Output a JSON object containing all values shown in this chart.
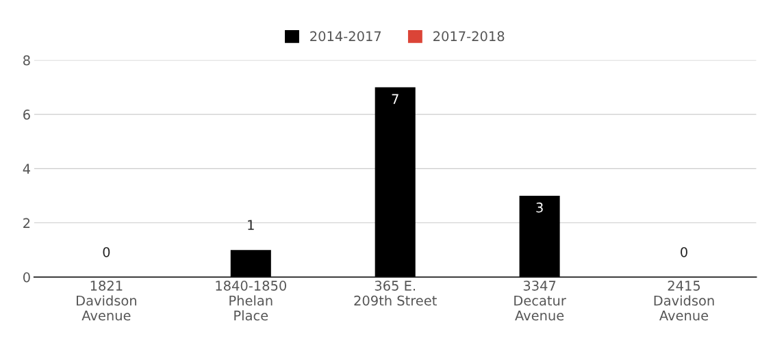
{
  "chart_data": {
    "type": "bar",
    "categories": [
      "1821\nDavidson\nAvenue",
      "1840-1850\nPhelan\nPlace",
      "365 E.\n209th Street",
      "3347\nDecatur\nAvenue",
      "2415\nDavidson\nAvenue"
    ],
    "series": [
      {
        "name": "2014-2017",
        "color": "#000000",
        "values": [
          0,
          1,
          7,
          3,
          0
        ]
      },
      {
        "name": "2017-2018",
        "color": "#db4437",
        "values": [
          null,
          null,
          null,
          null,
          null
        ]
      }
    ],
    "ylim": [
      0,
      8
    ],
    "yticks": [
      0,
      2,
      4,
      6,
      8
    ],
    "grid": "y",
    "legend": "top",
    "data_labels": true
  }
}
